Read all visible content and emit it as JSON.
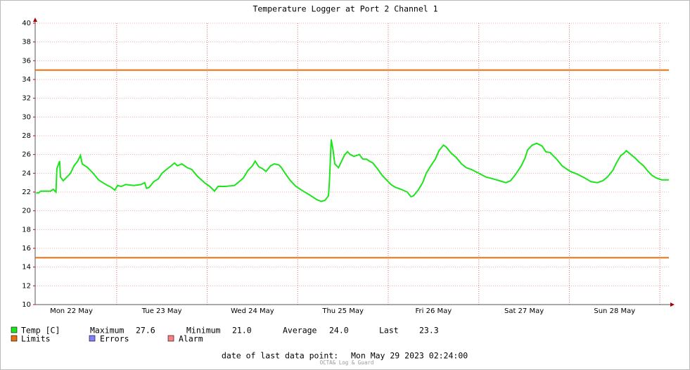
{
  "chart_data": {
    "type": "line",
    "title": "Temperature Logger at Port 2 Channel 1",
    "x": [
      0.11,
      0.14,
      0.16,
      0.23,
      0.27,
      0.3,
      0.33,
      0.34,
      0.37,
      0.38,
      0.41,
      0.45,
      0.49,
      0.53,
      0.57,
      0.6,
      0.62,
      0.68,
      0.74,
      0.8,
      0.88,
      0.94,
      0.98,
      1.01,
      1.05,
      1.1,
      1.19,
      1.27,
      1.31,
      1.33,
      1.36,
      1.41,
      1.46,
      1.5,
      1.55,
      1.59,
      1.64,
      1.67,
      1.72,
      1.78,
      1.83,
      1.89,
      1.97,
      2.03,
      2.08,
      2.12,
      2.2,
      2.3,
      2.34,
      2.4,
      2.45,
      2.5,
      2.53,
      2.57,
      2.61,
      2.65,
      2.7,
      2.74,
      2.79,
      2.82,
      2.86,
      2.92,
      2.98,
      3.06,
      3.13,
      3.21,
      3.26,
      3.3,
      3.34,
      3.35,
      3.37,
      3.39,
      3.41,
      3.45,
      3.48,
      3.52,
      3.55,
      3.58,
      3.62,
      3.68,
      3.72,
      3.76,
      3.79,
      3.83,
      3.88,
      3.93,
      3.97,
      4.03,
      4.08,
      4.14,
      4.21,
      4.25,
      4.28,
      4.33,
      4.38,
      4.42,
      4.47,
      4.52,
      4.56,
      4.61,
      4.64,
      4.69,
      4.75,
      4.81,
      4.86,
      4.92,
      5.0,
      5.08,
      5.16,
      5.23,
      5.3,
      5.35,
      5.4,
      5.47,
      5.51,
      5.54,
      5.59,
      5.64,
      5.7,
      5.74,
      5.79,
      5.86,
      5.92,
      6.01,
      6.09,
      6.17,
      6.24,
      6.31,
      6.37,
      6.42,
      6.48,
      6.52,
      6.57,
      6.6,
      6.63,
      6.68,
      6.73,
      6.77,
      6.82,
      6.87,
      6.91,
      6.96,
      7.02,
      7.1
    ],
    "series": [
      {
        "name": "Temp [C]",
        "color": "#1de51d",
        "values": [
          21.9,
          21.9,
          22.1,
          22.1,
          22.1,
          22.3,
          22.0,
          24.5,
          25.3,
          23.6,
          23.2,
          23.6,
          24.0,
          24.8,
          25.3,
          25.9,
          25.0,
          24.6,
          24.0,
          23.3,
          22.8,
          22.5,
          22.2,
          22.7,
          22.6,
          22.8,
          22.7,
          22.8,
          23.0,
          22.4,
          22.5,
          23.1,
          23.4,
          24.0,
          24.4,
          24.7,
          25.1,
          24.8,
          25.0,
          24.6,
          24.4,
          23.7,
          23.0,
          22.6,
          22.1,
          22.6,
          22.6,
          22.7,
          23.0,
          23.5,
          24.3,
          24.8,
          25.3,
          24.7,
          24.5,
          24.2,
          24.8,
          25.0,
          24.9,
          24.6,
          24.0,
          23.2,
          22.6,
          22.1,
          21.7,
          21.2,
          21.0,
          21.1,
          21.6,
          23.0,
          27.6,
          26.5,
          25.0,
          24.6,
          25.2,
          26.0,
          26.3,
          26.0,
          25.8,
          26.0,
          25.5,
          25.5,
          25.3,
          25.1,
          24.5,
          23.8,
          23.4,
          22.8,
          22.5,
          22.3,
          22.0,
          21.5,
          21.6,
          22.2,
          23.0,
          24.0,
          24.8,
          25.5,
          26.4,
          27.0,
          26.8,
          26.2,
          25.7,
          25.0,
          24.6,
          24.4,
          24.0,
          23.6,
          23.4,
          23.2,
          23.0,
          23.2,
          23.8,
          24.8,
          25.6,
          26.5,
          27.0,
          27.2,
          26.9,
          26.3,
          26.2,
          25.5,
          24.8,
          24.2,
          23.9,
          23.5,
          23.1,
          23.0,
          23.2,
          23.6,
          24.3,
          25.1,
          25.9,
          26.1,
          26.4,
          26.0,
          25.6,
          25.2,
          24.8,
          24.2,
          23.8,
          23.5,
          23.3,
          23.3
        ]
      }
    ],
    "limits": {
      "name": "Limits",
      "color": "#e8700f",
      "values": [
        35,
        15
      ]
    },
    "legend_extra": [
      {
        "name": "Errors",
        "color": "#7f7fff"
      },
      {
        "name": "Alarm",
        "color": "#ff7f7f"
      }
    ],
    "stats": [
      {
        "name": "Maximum",
        "value": 27.6
      },
      {
        "name": "Minimum",
        "value": 21,
        "value_label": "21.0"
      },
      {
        "name": "Average",
        "value": 24,
        "value_label": "24.0"
      },
      {
        "name": "Last",
        "value": 23.3
      }
    ],
    "xlim": [
      0.1,
      7.1
    ],
    "xticks": [
      {
        "value": 0.5,
        "label": "Mon 22 May"
      },
      {
        "value": 1.5,
        "label": "Tue 23 May"
      },
      {
        "value": 2.5,
        "label": "Wed 24 May"
      },
      {
        "value": 3.5,
        "label": "Thu 25 May"
      },
      {
        "value": 4.5,
        "label": "Fri 26 May"
      },
      {
        "value": 5.5,
        "label": "Sat 27 May"
      },
      {
        "value": 6.5,
        "label": "Sun 28 May"
      }
    ],
    "ylim": [
      10,
      40
    ],
    "yticks": [
      10,
      12,
      14,
      16,
      18,
      20,
      22,
      24,
      26,
      28,
      30,
      32,
      34,
      36,
      38,
      40
    ],
    "grid": true,
    "footer": {
      "label": "date of last data point:",
      "value": "Mon May 29 2023 02:24:00"
    },
    "watermark": "OCTA& Log & Guard"
  }
}
